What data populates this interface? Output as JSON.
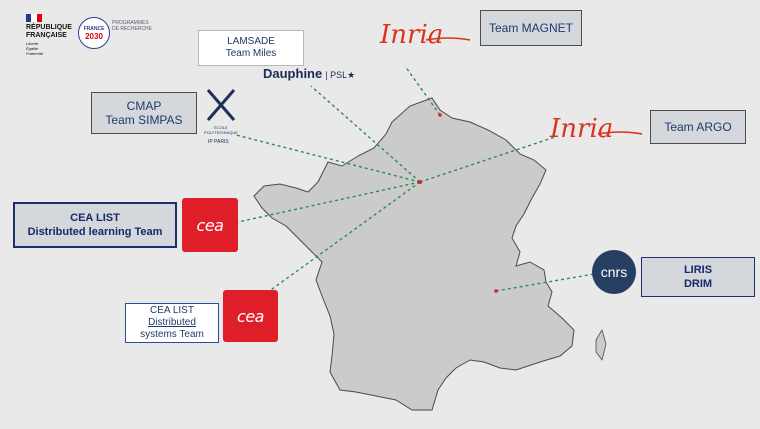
{
  "colors": {
    "map_fill": "#cbcbcb",
    "map_stroke": "#4a4a4a",
    "connector": "#2e8b57",
    "accent_red": "#e01e2a",
    "navy": "#1c2f6e"
  },
  "header_logos": {
    "republique": {
      "line1": "RÉPUBLIQUE",
      "line2": "FRANÇAISE",
      "motto1": "Liberté",
      "motto2": "Égalité",
      "motto3": "Fraternité"
    },
    "france2030": {
      "brand_top": "FRANCE",
      "brand_bottom": "2030",
      "program_line1": "PROGRAMMES",
      "program_line2": "DE RECHERCHE"
    }
  },
  "nodes": {
    "lamsade": {
      "line1": "LAMSADE",
      "line2": "Team Miles"
    },
    "dauphine": {
      "text": "Dauphine",
      "psl": "| PSL★"
    },
    "cmap": {
      "line1": "CMAP",
      "line2": "Team SIMPAS"
    },
    "polytechnique": {
      "name": "ÉCOLE POLYTECHNIQUE",
      "ip": "IP PARIS"
    },
    "magnet": {
      "label": "Team MAGNET"
    },
    "inria_magnet": {
      "logo_text": "Inria"
    },
    "argo": {
      "label": "Team ARGO"
    },
    "inria_argo": {
      "logo_text": "Inria"
    },
    "cea_list_learning": {
      "line1": "CEA LIST",
      "line2": "Distributed learning Team"
    },
    "cea_logo_1": {
      "text": "cea"
    },
    "cea_list_systems": {
      "line1": "CEA LIST",
      "line2": "Distributed",
      "line3": "systems Team"
    },
    "cea_logo_2": {
      "text": "cea"
    },
    "cnrs": {
      "text": "cnrs"
    },
    "liris": {
      "line1": "LIRIS",
      "line2": "DRIM"
    }
  }
}
